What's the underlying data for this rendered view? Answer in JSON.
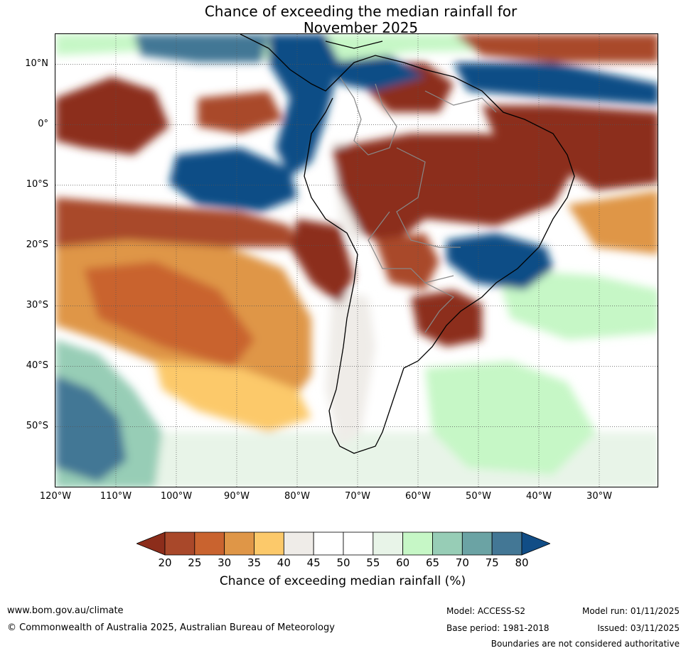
{
  "title": {
    "line1": "Chance of exceeding the median rainfall for",
    "line2": "November 2025"
  },
  "axes": {
    "lat_labels": [
      "10°N",
      "0°",
      "10°S",
      "20°S",
      "30°S",
      "40°S",
      "50°S"
    ],
    "lon_labels": [
      "120°W",
      "110°W",
      "100°W",
      "90°W",
      "80°W",
      "70°W",
      "60°W",
      "50°W",
      "40°W",
      "30°W"
    ],
    "lat_range": [
      -60,
      15
    ],
    "lon_range": [
      -120,
      -20
    ]
  },
  "colorbar": {
    "ticks": [
      "20",
      "25",
      "30",
      "35",
      "40",
      "45",
      "50",
      "55",
      "60",
      "65",
      "70",
      "75",
      "80"
    ],
    "label": "Chance of exceeding median rainfall (%)",
    "colors": [
      "#8c2d1b",
      "#a9482a",
      "#c9632f",
      "#df9647",
      "#fcc96a",
      "#efece8",
      "#ffffff",
      "#ffffff",
      "#e8f4e8",
      "#c6f7c6",
      "#97cdb6",
      "#6ba3a4",
      "#437795",
      "#114d86"
    ]
  },
  "footer": {
    "website": "www.bom.gov.au/climate",
    "copyright": "© Commonwealth of Australia 2025, Australian Bureau of Meteorology",
    "model": "Model: ACCESS-S2",
    "base_period": "Base period: 1981-2018",
    "model_run": "Model run: 01/11/2025",
    "issued": "Issued: 03/11/2025",
    "disclaimer": "Boundaries are not considered authoritative"
  }
}
